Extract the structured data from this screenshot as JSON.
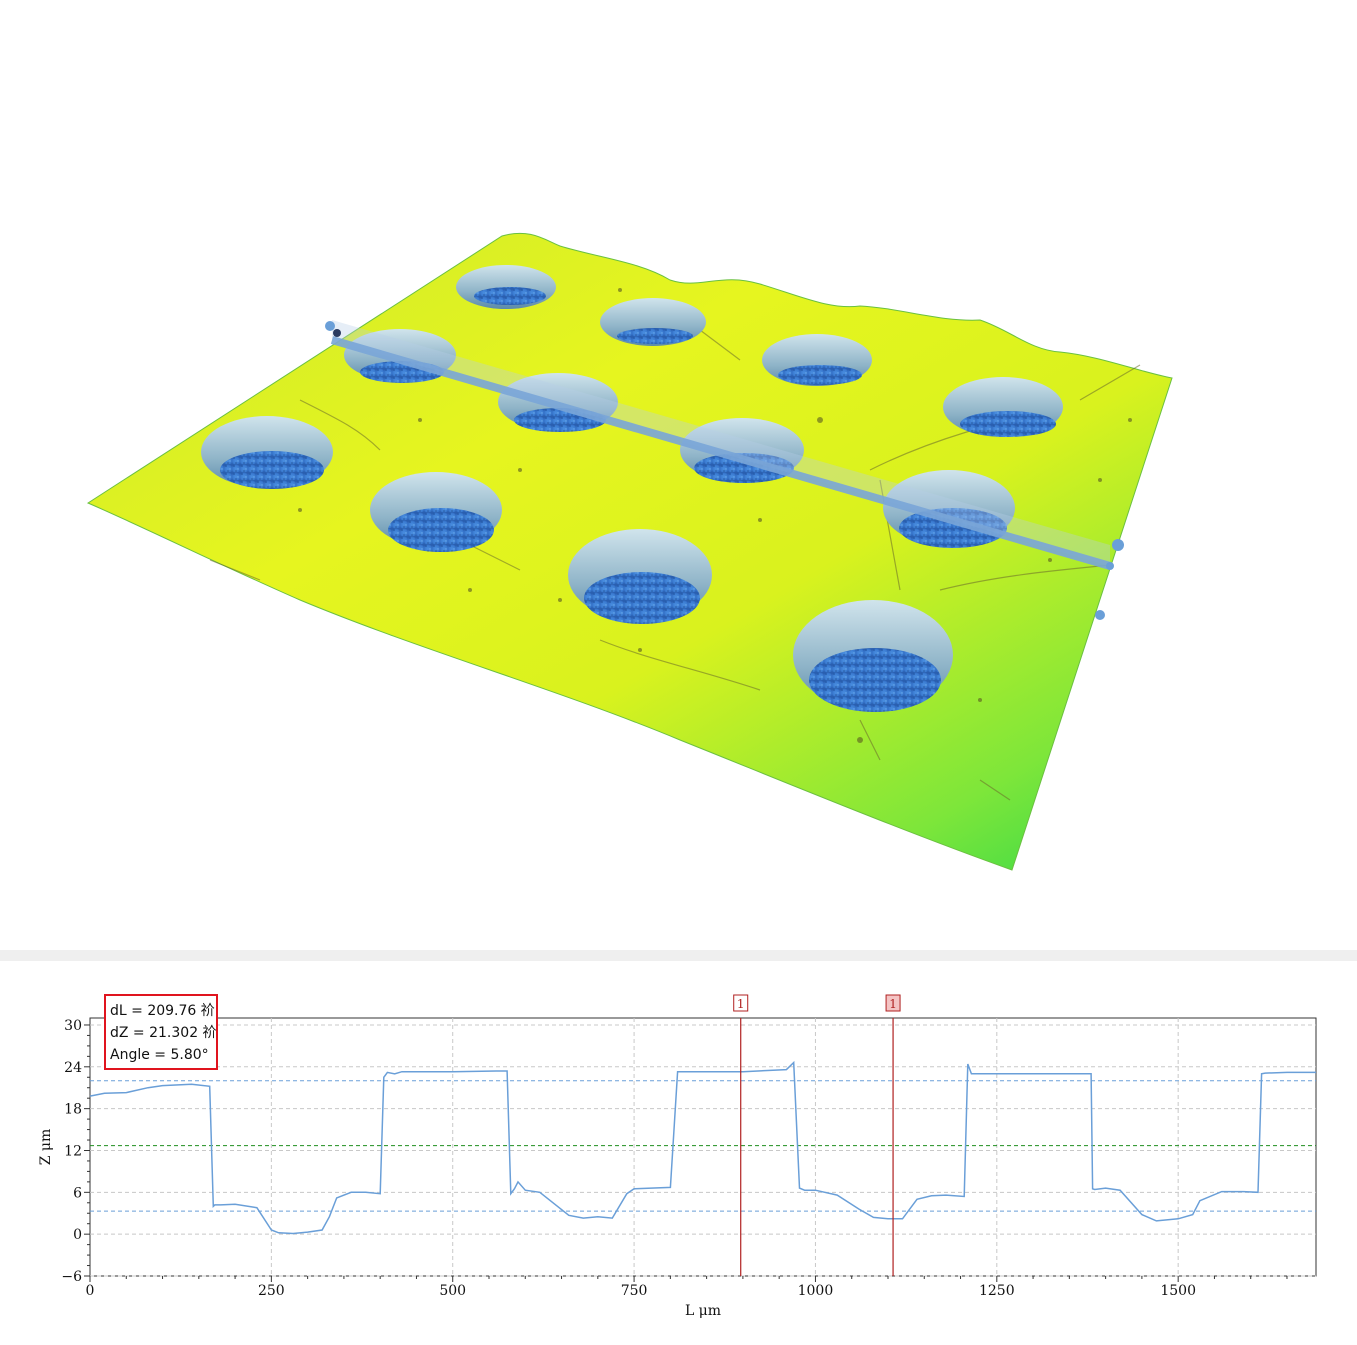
{
  "measurement": {
    "dL": "dL = 209.76 祄",
    "dZ": "dZ = 21.302 祄",
    "angle": "Angle = 5.80°"
  },
  "markers": [
    {
      "label": "1",
      "x": 897
    },
    {
      "label": "1",
      "x": 1107
    }
  ],
  "colors": {
    "profile_line": "#6a9fd8",
    "marker_line": "#b02020",
    "ref_blue": "#6a9fd8",
    "ref_green": "#1f8f1f",
    "surface_high": "#e7f51e",
    "surface_low": "#3aa0e0"
  },
  "chart_data": {
    "type": "line",
    "xlabel": "L  μm",
    "ylabel": "Z  μm",
    "xlim": [
      0,
      1690
    ],
    "ylim": [
      -6,
      31
    ],
    "xticks": [
      0,
      250,
      500,
      750,
      1000,
      1250,
      1500
    ],
    "yticks": [
      -6,
      0,
      6,
      12,
      18,
      24,
      30
    ],
    "grid": true,
    "reference_lines": [
      {
        "y": 22.0,
        "color": "blue"
      },
      {
        "y": 12.7,
        "color": "green"
      },
      {
        "y": 3.3,
        "color": "blue"
      }
    ],
    "series": [
      {
        "x": [
          0,
          20,
          50,
          80,
          100,
          140,
          165,
          170,
          172,
          180,
          200,
          230,
          250,
          260,
          280,
          300,
          320,
          330,
          340,
          360,
          380,
          400,
          405,
          410,
          420,
          430,
          500,
          560,
          575,
          580,
          585,
          590,
          600,
          620,
          660,
          680,
          700,
          720,
          740,
          750,
          800,
          810,
          812,
          820,
          900,
          960,
          970,
          978,
          985,
          1000,
          1030,
          1060,
          1080,
          1100,
          1120,
          1140,
          1160,
          1180,
          1205,
          1210,
          1215,
          1220,
          1250,
          1300,
          1380,
          1382,
          1385,
          1400,
          1420,
          1450,
          1470,
          1500,
          1520,
          1530,
          1560,
          1590,
          1610,
          1615,
          1620,
          1650,
          1690
        ],
        "y": [
          19.8,
          20.2,
          20.3,
          21.0,
          21.3,
          21.5,
          21.2,
          4.0,
          4.2,
          4.2,
          4.3,
          3.8,
          0.6,
          0.2,
          0.1,
          0.3,
          0.6,
          2.5,
          5.2,
          6.0,
          6.0,
          5.8,
          22.5,
          23.2,
          23.0,
          23.3,
          23.3,
          23.4,
          23.4,
          5.8,
          6.5,
          7.5,
          6.3,
          6.0,
          2.7,
          2.3,
          2.5,
          2.3,
          5.8,
          6.5,
          6.7,
          23.3,
          23.3,
          23.3,
          23.3,
          23.6,
          24.6,
          6.6,
          6.3,
          6.3,
          5.6,
          3.6,
          2.4,
          2.2,
          2.2,
          5.0,
          5.5,
          5.6,
          5.4,
          24.4,
          23.0,
          23.0,
          23.0,
          23.0,
          23.0,
          6.5,
          6.4,
          6.6,
          6.3,
          2.8,
          1.9,
          2.2,
          2.8,
          4.8,
          6.1,
          6.1,
          6.0,
          23.0,
          23.1,
          23.2,
          23.2
        ]
      }
    ]
  }
}
